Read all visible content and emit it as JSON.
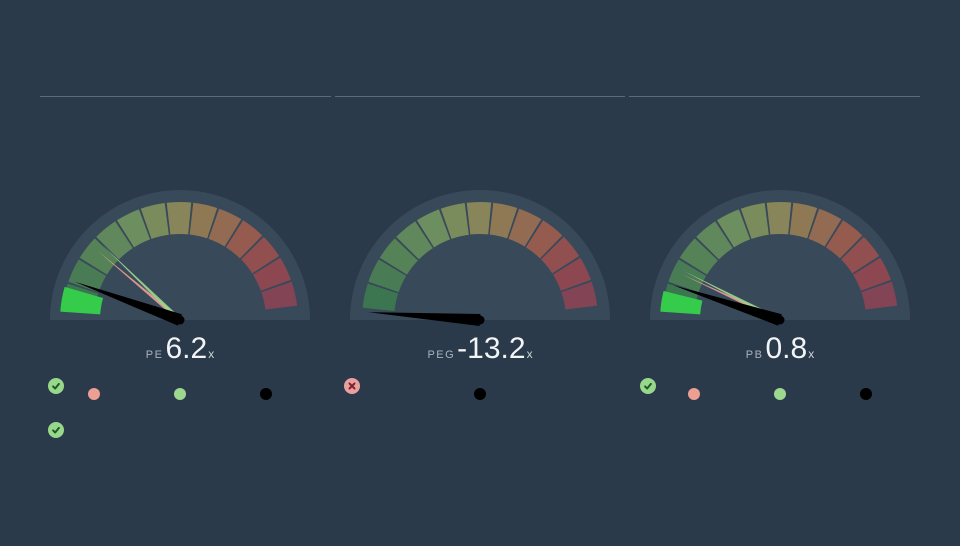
{
  "background_color": "#2b3a4a",
  "divider_color": "#5a6a79",
  "gauge": {
    "face_color": "#38495a",
    "arc_segment_colors": [
      "#3f8a4b",
      "#519351",
      "#629c56",
      "#72a45c",
      "#85ac61",
      "#98a95d",
      "#a99f58",
      "#b58f53",
      "#bb7a4e",
      "#bd6449",
      "#b9524a",
      "#b1474d",
      "#a44552"
    ],
    "arc_segment_opacity": 0.7,
    "arc_inner_radius": 86,
    "arc_outer_radius": 118,
    "face_radius": 130,
    "bright_wedge_color": "#35cc4b",
    "needle_main_color": "#000000",
    "needle_thin1_color": "#ec9f93",
    "needle_thin2_color": "#9cd88e",
    "value_fontsize": 30,
    "value_color": "#f2f4f6",
    "metric_fontsize": 11,
    "metric_color": "#aab3bc",
    "suffix": "x",
    "legend_dot_radius": 6,
    "legend_dot_gap": 74,
    "legend_colors_full": [
      "#ec9f93",
      "#9cd88e",
      "#000000"
    ],
    "legend_colors_single": [
      "#000000"
    ]
  },
  "gauges": [
    {
      "id": "pe",
      "metric": "PE",
      "value": "6.2",
      "main_angle": 160,
      "thin_angles": [
        140,
        136
      ],
      "bright_wedge": {
        "start": 176,
        "end": 164
      },
      "legend": "full"
    },
    {
      "id": "peg",
      "metric": "PEG",
      "value": "-13.2",
      "main_angle": 176,
      "thin_angles": [],
      "bright_wedge": null,
      "legend": "single"
    },
    {
      "id": "pb",
      "metric": "PB",
      "value": "0.8",
      "main_angle": 162,
      "thin_angles": [
        155,
        153
      ],
      "bright_wedge": {
        "start": 176,
        "end": 166
      },
      "legend": "full"
    }
  ],
  "checks": [
    {
      "col": 0,
      "items": [
        "ok",
        "ok"
      ]
    },
    {
      "col": 1,
      "items": [
        "bad"
      ]
    },
    {
      "col": 2,
      "items": [
        "ok"
      ]
    }
  ],
  "badge_ok_bg": "#97d88b",
  "badge_ok_fg": "#1f5a2a",
  "badge_bad_bg": "#e9a0a0",
  "badge_bad_fg": "#7a2525"
}
